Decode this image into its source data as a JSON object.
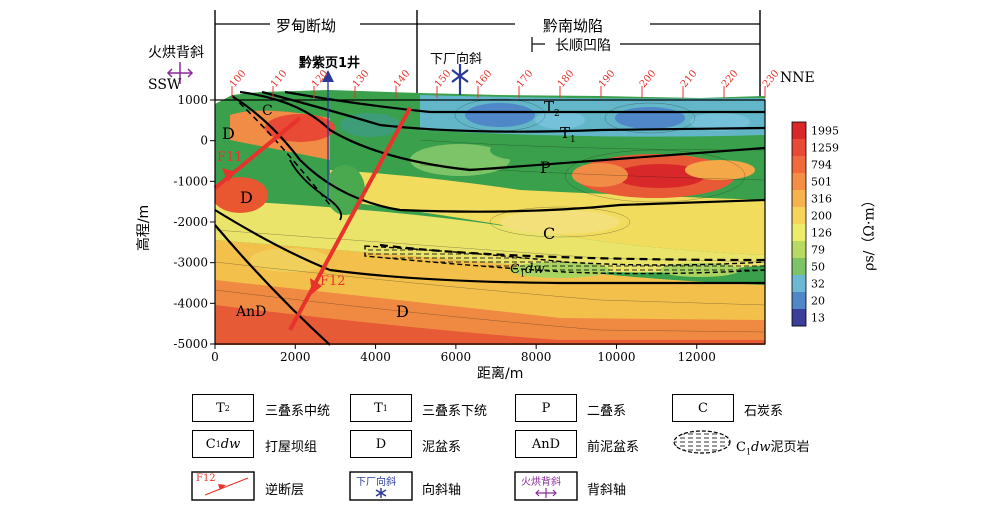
{
  "header": {
    "left_region": "罗甸断坳",
    "right_region": "黔南坳陷",
    "sub_region": "长顺凹陷"
  },
  "annotations": {
    "anticline_label": "火烘背斜",
    "well_label": "黔紫页1井",
    "syncline_label": "下厂向斜",
    "ssw": "SSW",
    "nne": "NNE",
    "fault_f11": "F11",
    "fault_f12": "F12"
  },
  "strata_labels": {
    "T2": "T",
    "T2_sub": "2",
    "T1": "T",
    "T1_sub": "1",
    "P": "P",
    "C": "C",
    "D_upper": "D",
    "D_lower": "D",
    "D_bottom": "D",
    "C_small": "C",
    "C1dw": "C",
    "C1dw_sub": "1",
    "C1dw_italic": "dw",
    "AnD": "AnD"
  },
  "chart_data": {
    "type": "heatmap",
    "xlabel": "距离/m",
    "ylabel": "高程/m",
    "xlim": [
      0,
      13700
    ],
    "ylim": [
      -5000,
      1000
    ],
    "x_ticks": [
      "0",
      "2000",
      "4000",
      "6000",
      "8000",
      "10000",
      "12000"
    ],
    "y_ticks": [
      "1000",
      "0",
      "-1000",
      "-2000",
      "-3000",
      "-4000",
      "-5000"
    ],
    "station_ticks": [
      "100",
      "110",
      "120",
      "130",
      "140",
      "150",
      "160",
      "170",
      "180",
      "190",
      "200",
      "210",
      "220",
      "230"
    ],
    "colorbar": {
      "label": "ρs/（Ω·m）",
      "values": [
        "1995",
        "1259",
        "794",
        "501",
        "316",
        "200",
        "126",
        "79",
        "50",
        "32",
        "20",
        "13"
      ],
      "colors": [
        "#d8282a",
        "#e84a35",
        "#f06a3d",
        "#f48e45",
        "#f7b24e",
        "#f6d35a",
        "#ecec6a",
        "#b8da63",
        "#7cc467",
        "#6db8d2",
        "#4f87c9",
        "#3b3f9a"
      ]
    }
  },
  "legend": {
    "items": [
      {
        "code": "T",
        "sub": "2",
        "text": "三叠系中统"
      },
      {
        "code": "T",
        "sub": "1",
        "text": "三叠系下统"
      },
      {
        "code": "P",
        "sub": "",
        "text": "二叠系"
      },
      {
        "code": "C",
        "sub": "",
        "text": "石炭系"
      },
      {
        "code": "C",
        "sub": "1",
        "italic": "dw",
        "text": "打屋坝组"
      },
      {
        "code": "D",
        "sub": "",
        "text": "泥盆系"
      },
      {
        "code": "AnD",
        "sub": "",
        "text": "前泥盆系"
      },
      {
        "code": "",
        "sub": "",
        "text": "C"
      },
      {
        "code": "F12",
        "sub": "",
        "text": "逆断层"
      },
      {
        "code": "下厂向斜",
        "sub": "",
        "text": "向斜轴"
      },
      {
        "code": "火烘背斜",
        "sub": "",
        "text": "背斜轴"
      }
    ],
    "shale_text_sub": "1",
    "shale_text_italic": "dw",
    "shale_text_tail": "泥页岩"
  }
}
